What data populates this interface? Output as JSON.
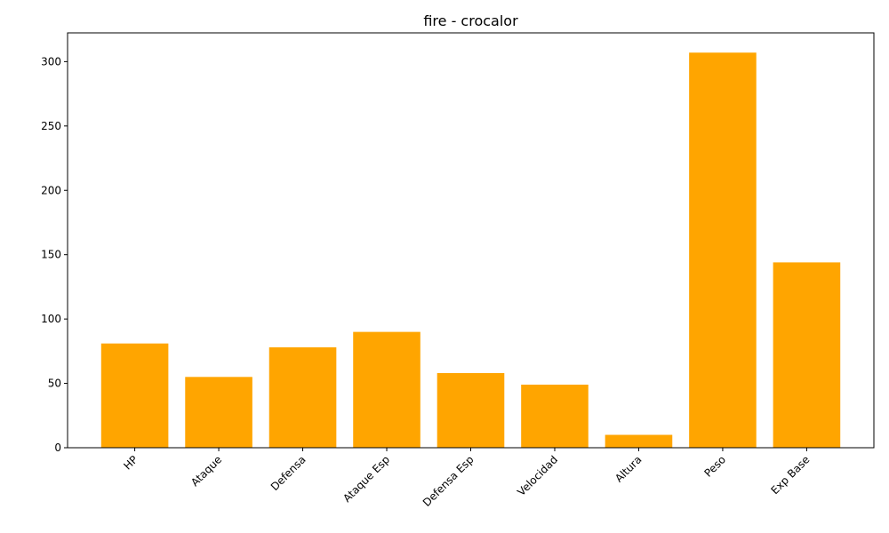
{
  "chart_data": {
    "type": "bar",
    "title": "fire - crocalor",
    "xlabel": "",
    "ylabel": "",
    "categories": [
      "HP",
      "Ataque",
      "Defensa",
      "Ataque Esp",
      "Defensa Esp",
      "Velocidad",
      "Altura",
      "Peso",
      "Exp Base"
    ],
    "values": [
      81,
      55,
      78,
      90,
      58,
      49,
      10,
      307,
      144
    ],
    "ylim": [
      0,
      322.35
    ],
    "yticks": [
      0,
      50,
      100,
      150,
      200,
      250,
      300
    ],
    "bar_color": "#ffa500",
    "grid": false,
    "x_tick_rotation_deg": 45
  }
}
